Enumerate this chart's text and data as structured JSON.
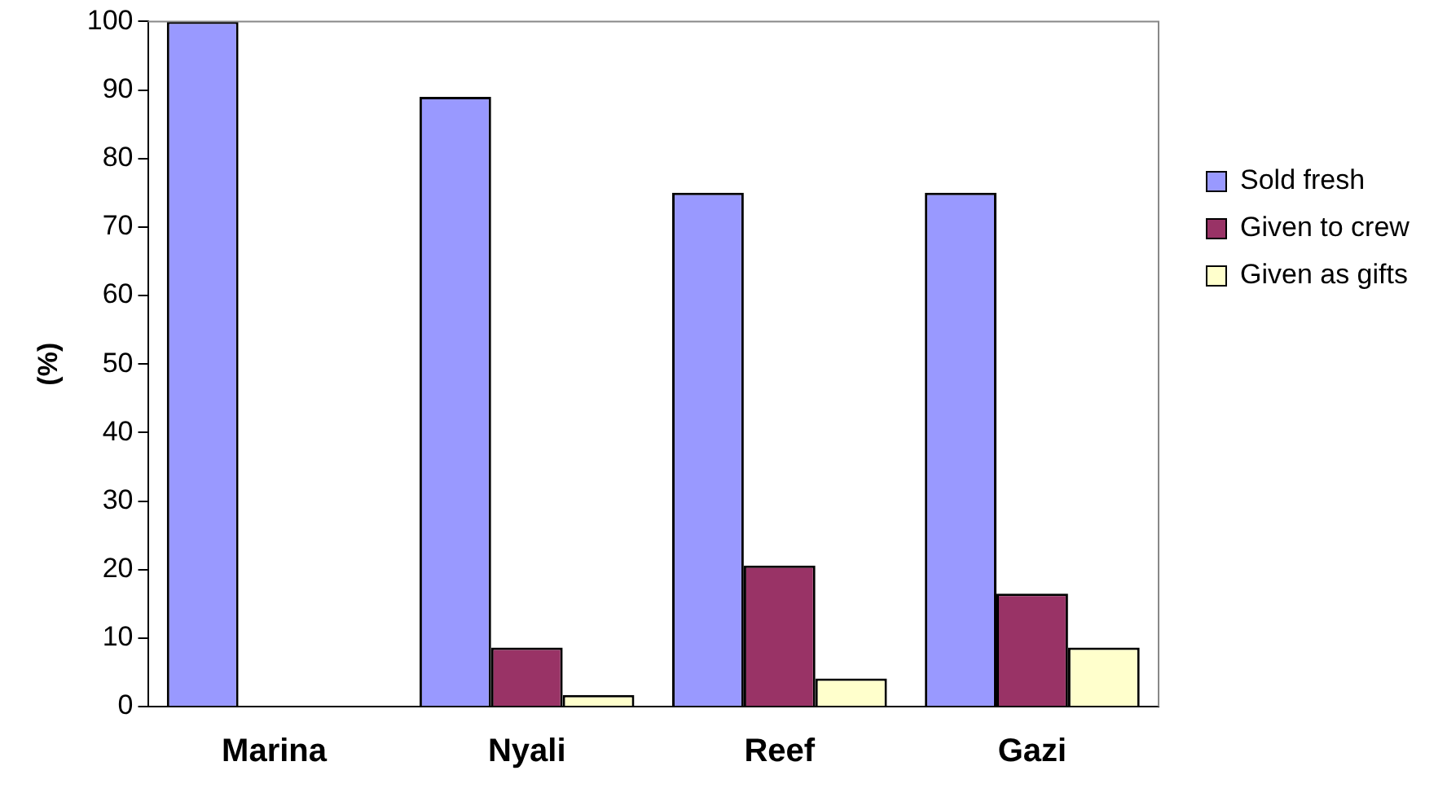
{
  "chart_data": {
    "type": "bar",
    "ylabel": "(%)",
    "categories": [
      "Marina",
      "Nyali",
      "Reef",
      "Gazi"
    ],
    "series": [
      {
        "name": "Sold fresh",
        "color": "#9999ff",
        "values": [
          100,
          89,
          75,
          75
        ]
      },
      {
        "name": "Given to crew",
        "color": "#993366",
        "values": [
          0,
          8.6,
          20.6,
          16.5
        ]
      },
      {
        "name": "Given as gifts",
        "color": "#ffffcc",
        "values": [
          0,
          1.7,
          4.1,
          8.6
        ]
      }
    ],
    "ylim": [
      0,
      100
    ],
    "yticks": [
      0,
      10,
      20,
      30,
      40,
      50,
      60,
      70,
      80,
      90,
      100
    ],
    "grid": false,
    "legend": "right"
  }
}
